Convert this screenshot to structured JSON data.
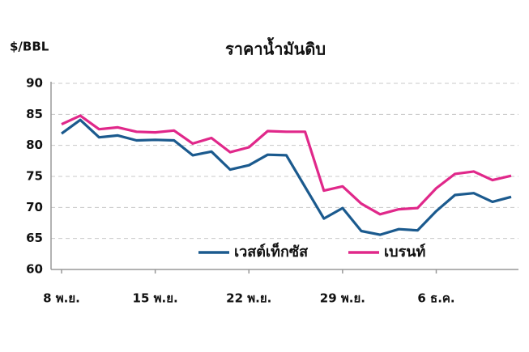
{
  "chart_data": {
    "type": "line",
    "title": "ราคาน้ำมันดิบ",
    "y_label": "$/BBL",
    "categories": [
      "8 พ.ย.",
      null,
      null,
      null,
      null,
      "15 พ.ย.",
      null,
      null,
      null,
      null,
      "22 พ.ย.",
      null,
      null,
      null,
      null,
      "29 พ.ย.",
      null,
      null,
      null,
      null,
      "6 ธ.ค.",
      null,
      null,
      null,
      null
    ],
    "series": [
      {
        "name": "เวสต์เท็กซัส",
        "color": "#1b5a8e",
        "values": [
          81.9,
          84.1,
          81.3,
          81.6,
          80.8,
          80.9,
          80.8,
          78.4,
          79.0,
          76.1,
          76.8,
          78.5,
          78.4,
          73.3,
          68.2,
          69.9,
          66.2,
          65.6,
          66.5,
          66.3,
          69.4,
          72.0,
          72.3,
          70.9,
          71.7
        ]
      },
      {
        "name": "เบรนท์",
        "color": "#e0288a",
        "values": [
          83.4,
          84.8,
          82.6,
          82.9,
          82.2,
          82.1,
          82.4,
          80.3,
          81.2,
          78.9,
          79.7,
          82.3,
          82.2,
          82.2,
          72.7,
          73.4,
          70.6,
          68.9,
          69.7,
          69.9,
          73.1,
          75.4,
          75.8,
          74.4,
          75.1
        ]
      }
    ],
    "ylim": [
      60,
      90
    ],
    "yticks": [
      60,
      65,
      70,
      75,
      80,
      85,
      90
    ],
    "grid": true,
    "legend": "bottom"
  }
}
